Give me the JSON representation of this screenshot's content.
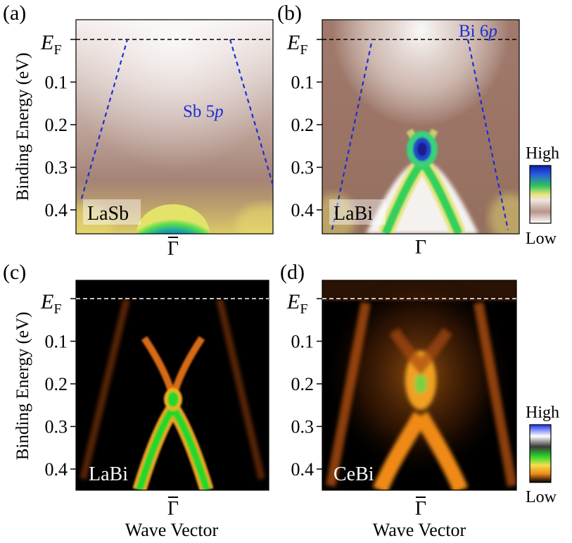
{
  "figure": {
    "y_axis_label": "Binding Energy (eV)",
    "x_axis_label": "Wave Vector",
    "fermi_label_main": "E",
    "fermi_label_sub": "F",
    "gamma_label": "Γ",
    "colorbar_high": "High",
    "colorbar_low": "Low",
    "colors": {
      "fermi_line": "#000000",
      "fermi_line_dark": "#ffffff",
      "band_guide": "#1a2fd6",
      "annotation": "#1a2fd6"
    }
  },
  "panels": [
    {
      "letter": "(a)",
      "sample": "LaSb",
      "orbital": "Sb 5",
      "orbital_italic": "p",
      "ticks": [
        "0.1",
        "0.2",
        "0.3",
        "0.4"
      ]
    },
    {
      "letter": "(b)",
      "sample": "LaBi",
      "orbital": "Bi 6",
      "orbital_italic": "p",
      "ticks": [
        "0.1",
        "0.2",
        "0.3",
        "0.4"
      ]
    },
    {
      "letter": "(c)",
      "sample": "LaBi",
      "ticks": [
        "0.1",
        "0.2",
        "0.3",
        "0.4"
      ]
    },
    {
      "letter": "(d)",
      "sample": "CeBi",
      "ticks": [
        "0.1",
        "0.2",
        "0.3",
        "0.4"
      ]
    }
  ],
  "chart_data": [
    {
      "type": "heatmap",
      "panel": "(a)",
      "xlabel": "",
      "ylabel": "Binding Energy (eV)",
      "y_ticks": [
        0.1,
        0.2,
        0.3,
        0.4
      ],
      "fermi_level": 0,
      "colormap": "brown-white-yellow-green-blue",
      "band_guides": [
        {
          "name": "Sb 5p",
          "points": [
            [
              -0.95,
              0.37
            ],
            [
              -0.48,
              0.0
            ]
          ]
        },
        {
          "name": "Sb 5p",
          "points": [
            [
              0.52,
              0.0
            ],
            [
              1.0,
              0.34
            ]
          ]
        }
      ]
    },
    {
      "type": "heatmap",
      "panel": "(b)",
      "xlabel": "",
      "ylabel": "",
      "y_ticks": [
        0.1,
        0.2,
        0.3,
        0.4
      ],
      "fermi_level": 0,
      "colormap": "brown-white-yellow-green-blue",
      "band_guides": [
        {
          "name": "Bi 6p",
          "points": [
            [
              -0.88,
              0.45
            ],
            [
              -0.5,
              0.0
            ]
          ]
        },
        {
          "name": "Bi 6p",
          "points": [
            [
              0.55,
              0.0
            ],
            [
              0.9,
              0.45
            ]
          ]
        }
      ]
    },
    {
      "type": "heatmap",
      "panel": "(c)",
      "xlabel": "Wave Vector",
      "ylabel": "Binding Energy (eV)",
      "y_ticks": [
        0.1,
        0.2,
        0.3,
        0.4
      ],
      "fermi_level": 0,
      "colormap": "black-orange-green-white-blue",
      "dirac_point": 0.22
    },
    {
      "type": "heatmap",
      "panel": "(d)",
      "xlabel": "Wave Vector",
      "ylabel": "",
      "y_ticks": [
        0.1,
        0.2,
        0.3,
        0.4
      ],
      "fermi_level": 0,
      "colormap": "black-orange-green-white-blue",
      "dirac_point": 0.2
    }
  ]
}
